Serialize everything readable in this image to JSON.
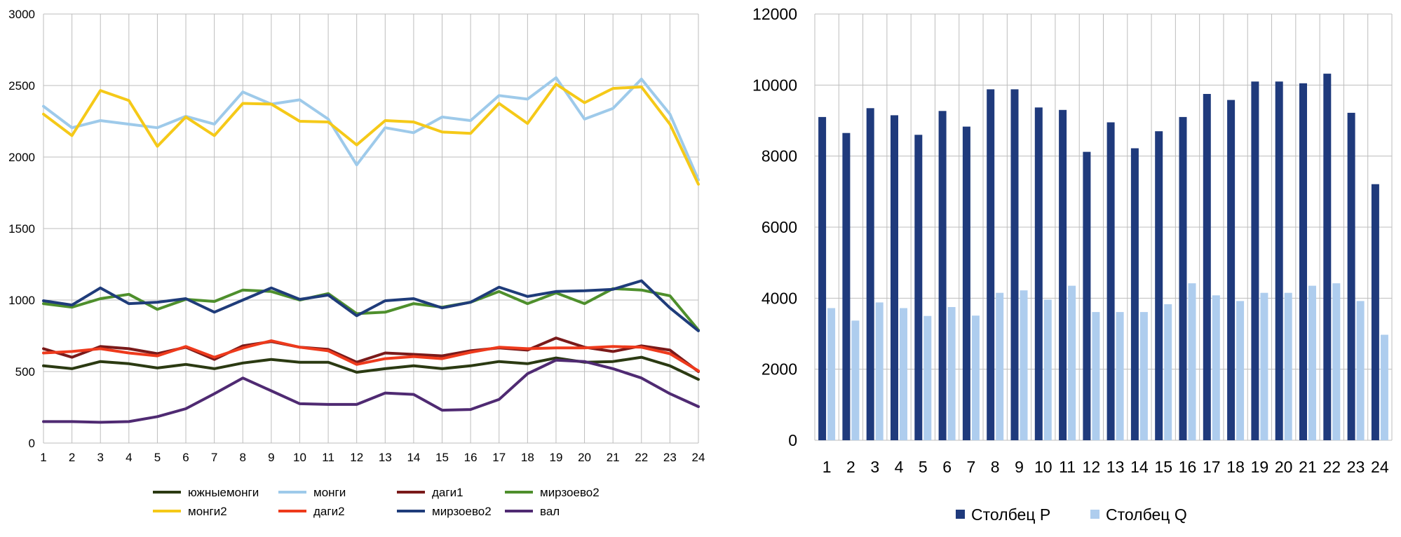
{
  "chart_data": [
    {
      "type": "line",
      "title": "",
      "xlabel": "",
      "ylabel": "",
      "x": [
        1,
        2,
        3,
        4,
        5,
        6,
        7,
        8,
        9,
        10,
        11,
        12,
        13,
        14,
        15,
        16,
        17,
        18,
        19,
        20,
        21,
        22,
        23,
        24
      ],
      "ylim": [
        0,
        3000
      ],
      "yticks": [
        0,
        500,
        1000,
        1500,
        2000,
        2500,
        3000
      ],
      "grid": true,
      "legend_position": "bottom",
      "series": [
        {
          "name": "южныемонги",
          "color": "#2b3a12",
          "values": [
            540,
            520,
            570,
            555,
            525,
            550,
            520,
            560,
            585,
            565,
            565,
            495,
            520,
            540,
            520,
            540,
            570,
            555,
            595,
            565,
            570,
            600,
            540,
            445
          ]
        },
        {
          "name": "монги",
          "color": "#9ecaea",
          "values": [
            2355,
            2205,
            2255,
            2230,
            2205,
            2285,
            2230,
            2455,
            2370,
            2400,
            2265,
            1945,
            2205,
            2170,
            2280,
            2255,
            2430,
            2405,
            2555,
            2265,
            2340,
            2545,
            2300,
            1840
          ]
        },
        {
          "name": "даги1",
          "color": "#7a1a1a",
          "values": [
            660,
            600,
            675,
            660,
            625,
            670,
            585,
            680,
            710,
            670,
            655,
            565,
            630,
            620,
            610,
            645,
            665,
            650,
            735,
            670,
            640,
            680,
            650,
            500
          ]
        },
        {
          "name": "мирзоево2",
          "color": "#4e8f2c",
          "values": [
            975,
            950,
            1010,
            1040,
            935,
            1005,
            990,
            1070,
            1060,
            1000,
            1045,
            905,
            915,
            975,
            950,
            985,
            1060,
            975,
            1050,
            975,
            1080,
            1070,
            1030,
            790
          ]
        },
        {
          "name": "монги2",
          "color": "#f5c918",
          "values": [
            2300,
            2150,
            2465,
            2395,
            2075,
            2280,
            2150,
            2375,
            2370,
            2250,
            2245,
            2085,
            2255,
            2245,
            2175,
            2165,
            2375,
            2235,
            2510,
            2380,
            2480,
            2490,
            2230,
            1810
          ]
        },
        {
          "name": "даги2",
          "color": "#ee3a1c",
          "values": [
            630,
            640,
            660,
            630,
            610,
            675,
            600,
            665,
            715,
            670,
            645,
            550,
            590,
            605,
            590,
            635,
            670,
            660,
            665,
            665,
            675,
            670,
            625,
            505
          ]
        },
        {
          "name": "мирзоево2",
          "color": "#1f3c7a",
          "values": [
            995,
            965,
            1085,
            975,
            985,
            1010,
            915,
            1000,
            1085,
            1005,
            1035,
            890,
            995,
            1010,
            945,
            985,
            1090,
            1025,
            1060,
            1065,
            1075,
            1135,
            945,
            785
          ]
        },
        {
          "name": "вал",
          "color": "#4f2a72",
          "values": [
            150,
            150,
            145,
            150,
            185,
            240,
            345,
            455,
            365,
            275,
            270,
            270,
            350,
            340,
            230,
            235,
            305,
            485,
            580,
            570,
            520,
            455,
            345,
            255
          ]
        }
      ]
    },
    {
      "type": "bar",
      "title": "",
      "xlabel": "",
      "ylabel": "",
      "categories": [
        "1",
        "2",
        "3",
        "4",
        "5",
        "6",
        "7",
        "8",
        "9",
        "10",
        "11",
        "12",
        "13",
        "14",
        "15",
        "16",
        "17",
        "18",
        "19",
        "20",
        "21",
        "22",
        "23",
        "24"
      ],
      "ylim": [
        0,
        12000
      ],
      "yticks": [
        0,
        2000,
        4000,
        6000,
        8000,
        10000,
        12000
      ],
      "grid": true,
      "legend_position": "bottom",
      "series": [
        {
          "name": "Столбец P",
          "color": "#1f3a7c",
          "values": [
            9100,
            8650,
            9350,
            9150,
            8600,
            9270,
            8830,
            9880,
            9880,
            9370,
            9300,
            8120,
            8950,
            8220,
            8700,
            9100,
            9750,
            9580,
            10100,
            10100,
            10050,
            10320,
            9220,
            7210
          ]
        },
        {
          "name": "Столбец Q",
          "color": "#aecdee",
          "values": [
            3720,
            3370,
            3880,
            3720,
            3500,
            3750,
            3510,
            4150,
            4220,
            3960,
            4350,
            3610,
            3610,
            3610,
            3830,
            4420,
            4080,
            3920,
            4150,
            4150,
            4350,
            4420,
            3920,
            2970
          ]
        }
      ]
    }
  ]
}
